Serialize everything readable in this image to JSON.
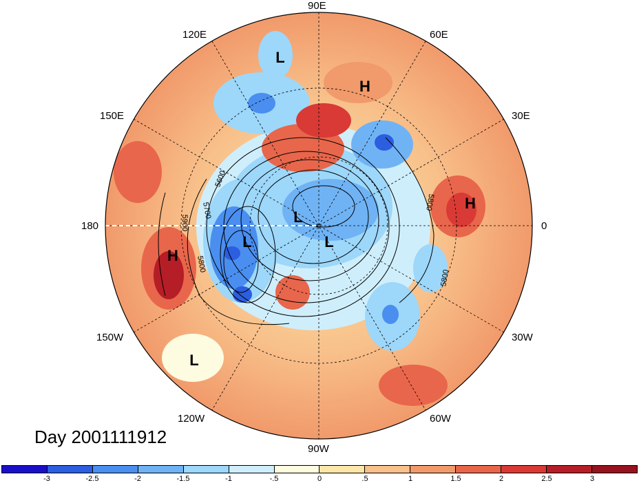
{
  "lon_labels": [
    "90E",
    "60E",
    "30E",
    "0",
    "30W",
    "60W",
    "90W",
    "120W",
    "150W",
    "180",
    "150E",
    "120E"
  ],
  "centers": [
    {
      "type": "L",
      "name": "low-center-siberia"
    },
    {
      "type": "H",
      "name": "high-center-central-asia"
    },
    {
      "type": "H",
      "name": "high-center-europe-africa"
    },
    {
      "type": "L",
      "name": "low-center-arctic-1"
    },
    {
      "type": "L",
      "name": "low-center-arctic-2"
    },
    {
      "type": "L",
      "name": "low-center-pacific-north"
    },
    {
      "type": "H",
      "name": "high-center-pacific"
    },
    {
      "type": "L",
      "name": "low-center-east-pacific"
    }
  ],
  "contour_labels": [
    "5600",
    "5700",
    "5900",
    "5800",
    "5800",
    "5800"
  ],
  "date_label": "Day 2001111912",
  "colorbar": {
    "ticks": [
      "-3",
      "-2.5",
      "-2",
      "-1.5",
      "-1",
      "-.5",
      "0",
      ".5",
      "1",
      "1.5",
      "2",
      "2.5",
      "3"
    ],
    "colors": [
      "#1a0fc8",
      "#2c5ee0",
      "#4a8ef0",
      "#6fb3f5",
      "#9dd7fa",
      "#cfeefc",
      "#fdfbe0",
      "#fde7a8",
      "#f8c08a",
      "#f19a6b",
      "#e8664b",
      "#d93a35",
      "#b51e26",
      "#96121e"
    ]
  }
}
